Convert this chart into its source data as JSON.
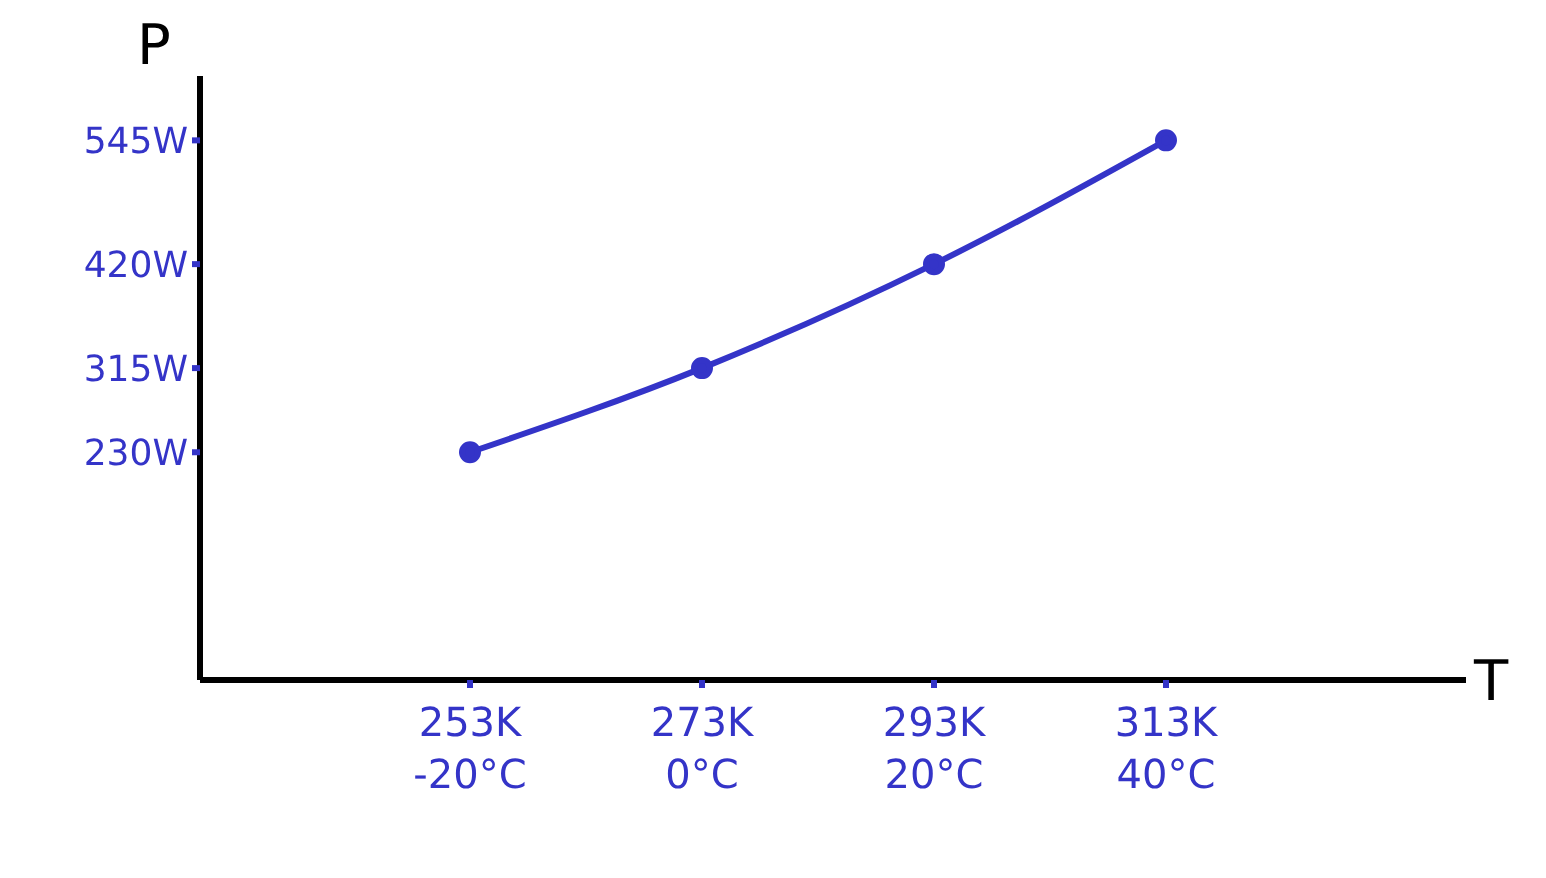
{
  "chart_data": {
    "type": "line",
    "xlabel": "T",
    "ylabel": "P",
    "categories": [
      "253K\n-20°C",
      "273K\n0°C",
      "293K\n20°C",
      "313K\n40°C"
    ],
    "series": [
      {
        "color": "#3434c8",
        "values": [
          230,
          315,
          420,
          545
        ]
      }
    ],
    "ylim": [
      0,
      610
    ],
    "yticks": [
      {
        "value": 230,
        "label": "230W"
      },
      {
        "value": 315,
        "label": "315W"
      },
      {
        "value": 420,
        "label": "420W"
      },
      {
        "value": 545,
        "label": "545W"
      }
    ],
    "grid": false,
    "legend": false,
    "marker": "circle",
    "line_style": "solid"
  }
}
